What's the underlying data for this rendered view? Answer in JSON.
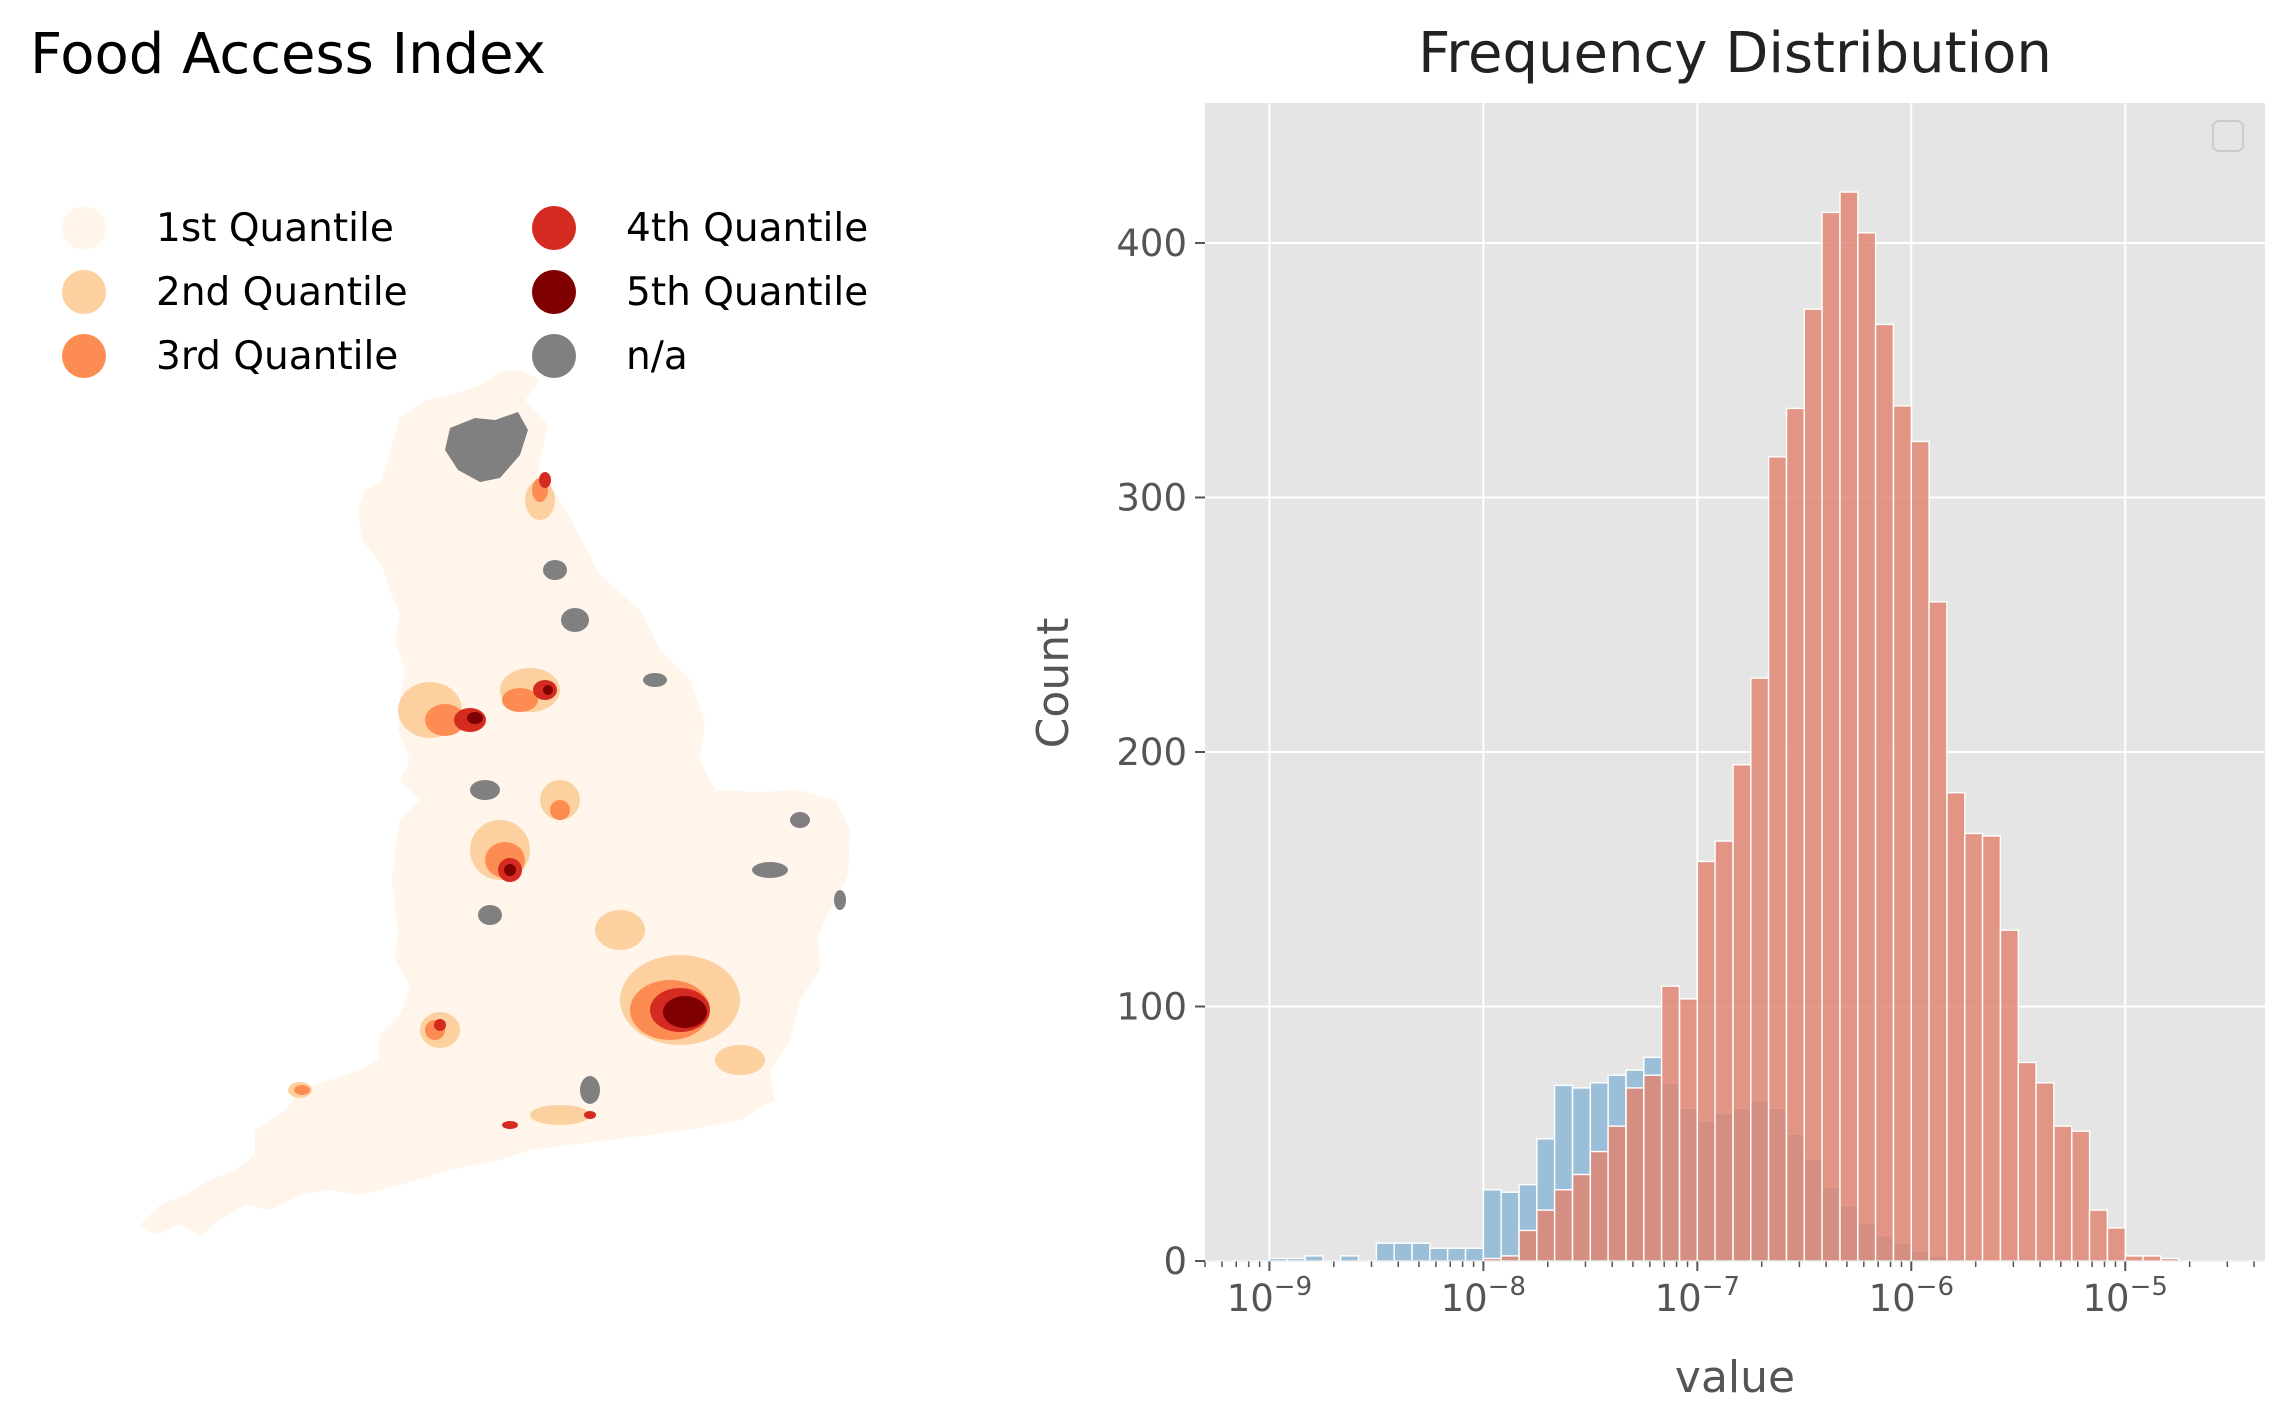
{
  "map": {
    "title": "Food Access Index",
    "legend": [
      {
        "label": "1st Quantile",
        "color": "#fff5eb"
      },
      {
        "label": "2nd Quantile",
        "color": "#fdd09f"
      },
      {
        "label": "3rd Quantile",
        "color": "#fd8c52"
      },
      {
        "label": "4th Quantile",
        "color": "#d42a20"
      },
      {
        "label": "5th Quantile",
        "color": "#7f0000"
      },
      {
        "label": "n/a",
        "color": "#808080"
      }
    ]
  },
  "chart_data": {
    "type": "bar",
    "title": "Frequency Distribution",
    "xlabel": "value",
    "ylabel": "Count",
    "x_scale": "log",
    "xlim": [
      5e-10,
      4.5e-05
    ],
    "ylim": [
      0,
      455
    ],
    "x_ticks": [
      "10^-9",
      "10^-8",
      "10^-7",
      "10^-6",
      "10^-5"
    ],
    "y_ticks": [
      0,
      100,
      200,
      300,
      400
    ],
    "grid": true,
    "background": "#e5e5e5",
    "legend_placement": "top-right",
    "bin_log10_width": 0.0833,
    "series": [
      {
        "color": "#8ab6d4",
        "bins_log10_start": [
          -9.0,
          -8.917,
          -8.833,
          -8.75,
          -8.667,
          -8.583,
          -8.5,
          -8.417,
          -8.333,
          -8.25,
          -8.167,
          -8.083,
          -8.0,
          -7.917,
          -7.833,
          -7.75,
          -7.667,
          -7.583,
          -7.5,
          -7.417,
          -7.333,
          -7.25,
          -7.167,
          -7.083,
          -7.0,
          -6.917,
          -6.833,
          -6.75,
          -6.667,
          -6.583,
          -6.5,
          -6.417,
          -6.333,
          -6.25,
          -6.167,
          -6.083,
          -6.0,
          -5.917,
          -5.833,
          -5.75
        ],
        "counts": [
          1,
          1,
          2,
          0,
          2,
          0,
          7,
          7,
          7,
          5,
          5,
          5,
          28,
          27,
          30,
          48,
          69,
          68,
          70,
          73,
          75,
          80,
          70,
          60,
          55,
          58,
          60,
          63,
          60,
          50,
          40,
          29,
          22,
          15,
          10,
          7,
          4,
          2,
          1,
          0
        ]
      },
      {
        "color": "#e2826f",
        "bins_log10_start": [
          -8.0,
          -7.917,
          -7.833,
          -7.75,
          -7.667,
          -7.583,
          -7.5,
          -7.417,
          -7.333,
          -7.25,
          -7.167,
          -7.083,
          -7.0,
          -6.917,
          -6.833,
          -6.75,
          -6.667,
          -6.583,
          -6.5,
          -6.417,
          -6.333,
          -6.25,
          -6.167,
          -6.083,
          -6.0,
          -5.917,
          -5.833,
          -5.75,
          -5.667,
          -5.583,
          -5.5,
          -5.417,
          -5.333,
          -5.25,
          -5.167,
          -5.083,
          -5.0,
          -4.917,
          -4.833,
          -4.75,
          -4.667
        ],
        "counts": [
          1,
          2,
          12,
          20,
          28,
          34,
          43,
          53,
          68,
          73,
          108,
          103,
          157,
          165,
          195,
          229,
          316,
          335,
          374,
          412,
          420,
          404,
          368,
          336,
          322,
          259,
          184,
          168,
          167,
          130,
          78,
          70,
          53,
          51,
          20,
          13,
          2,
          2,
          1,
          0,
          0
        ]
      }
    ]
  }
}
